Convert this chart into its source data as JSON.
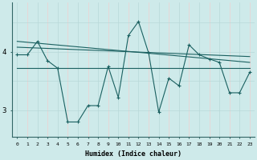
{
  "xlabel": "Humidex (Indice chaleur)",
  "bg_color": "#ceeaea",
  "grid_color": "#b8d8d8",
  "grid_color_pink": "#f0d0d0",
  "line_color": "#1a6060",
  "x_ticks": [
    0,
    1,
    2,
    3,
    4,
    5,
    6,
    7,
    8,
    9,
    10,
    11,
    12,
    13,
    14,
    15,
    16,
    17,
    18,
    19,
    20,
    21,
    22,
    23
  ],
  "ylim": [
    2.55,
    4.85
  ],
  "yticks": [
    3,
    4
  ],
  "series1_x": [
    0,
    1,
    2,
    3,
    4,
    5,
    6,
    7,
    8,
    9,
    10,
    11,
    12,
    13,
    14,
    15,
    16,
    17,
    18,
    19,
    20,
    21,
    22,
    23
  ],
  "series1_y": [
    3.95,
    3.95,
    4.18,
    3.85,
    3.72,
    2.8,
    2.8,
    3.08,
    3.08,
    3.75,
    3.22,
    4.28,
    4.52,
    3.98,
    2.97,
    3.55,
    3.42,
    4.12,
    3.95,
    3.88,
    3.82,
    3.3,
    3.3,
    3.65
  ],
  "series2_x": [
    0,
    23
  ],
  "series2_y": [
    4.08,
    3.92
  ],
  "series3_x": [
    0,
    23
  ],
  "series3_y": [
    3.72,
    3.72
  ],
  "series4_x": [
    0,
    23
  ],
  "series4_y": [
    4.18,
    3.82
  ]
}
